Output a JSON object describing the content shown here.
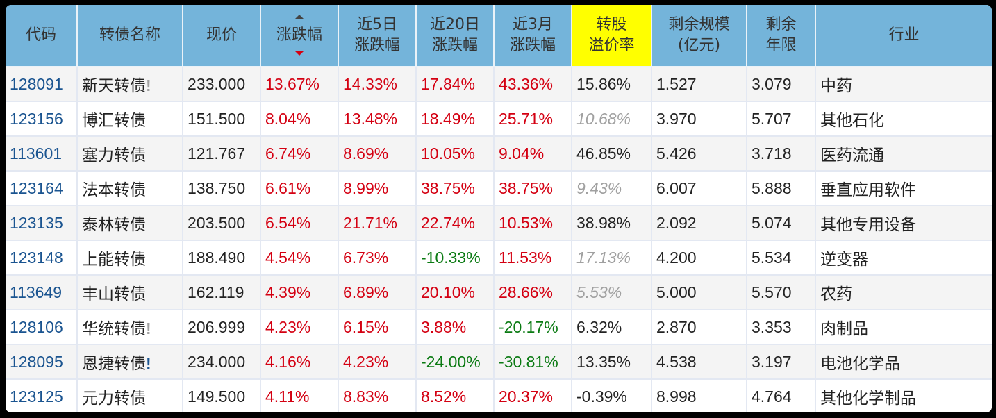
{
  "headers": [
    {
      "line1": "代码",
      "line2": ""
    },
    {
      "line1": "转债名称",
      "line2": ""
    },
    {
      "line1": "现价",
      "line2": ""
    },
    {
      "line1": "涨跌幅",
      "line2": "",
      "sort": "descending"
    },
    {
      "line1": "近5日",
      "line2": "涨跌幅"
    },
    {
      "line1": "近20日",
      "line2": "涨跌幅"
    },
    {
      "line1": "近3月",
      "line2": "涨跌幅"
    },
    {
      "line1": "转股",
      "line2": "溢价率",
      "highlight": true
    },
    {
      "line1": "剩余规模",
      "line2": "(亿元)"
    },
    {
      "line1": "剩余",
      "line2": "年限"
    },
    {
      "line1": "行业",
      "line2": ""
    }
  ],
  "colors": {
    "header_bg": "#74b4da",
    "highlight_bg": "#ffff00",
    "up": "#d40012",
    "down": "#0a7a12",
    "code": "#1a5490",
    "dim": "#a0a0a0"
  },
  "rows": [
    {
      "code": "128091",
      "name": "新天转债",
      "flag": "!",
      "flag_color": "gray",
      "price": "233.000",
      "chg": "13.67%",
      "chg5": "14.33%",
      "chg20": "17.84%",
      "chg3m": "43.36%",
      "premium": "15.86%",
      "premium_dim": false,
      "size": "1.527",
      "years": "3.079",
      "industry": "中药"
    },
    {
      "code": "123156",
      "name": "博汇转债",
      "flag": "",
      "flag_color": "",
      "price": "151.500",
      "chg": "8.04%",
      "chg5": "13.48%",
      "chg20": "18.49%",
      "chg3m": "25.71%",
      "premium": "10.68%",
      "premium_dim": true,
      "size": "3.970",
      "years": "5.707",
      "industry": "其他石化"
    },
    {
      "code": "113601",
      "name": "塞力转债",
      "flag": "",
      "flag_color": "",
      "price": "121.767",
      "chg": "6.74%",
      "chg5": "8.69%",
      "chg20": "10.05%",
      "chg3m": "9.04%",
      "premium": "46.85%",
      "premium_dim": false,
      "size": "5.426",
      "years": "3.718",
      "industry": "医药流通"
    },
    {
      "code": "123164",
      "name": "法本转债",
      "flag": "",
      "flag_color": "",
      "price": "138.750",
      "chg": "6.61%",
      "chg5": "8.99%",
      "chg20": "38.75%",
      "chg3m": "38.75%",
      "premium": "9.43%",
      "premium_dim": true,
      "size": "6.007",
      "years": "5.888",
      "industry": "垂直应用软件"
    },
    {
      "code": "123135",
      "name": "泰林转债",
      "flag": "",
      "flag_color": "",
      "price": "203.500",
      "chg": "6.54%",
      "chg5": "21.71%",
      "chg20": "22.74%",
      "chg3m": "10.53%",
      "premium": "38.98%",
      "premium_dim": false,
      "size": "2.092",
      "years": "5.074",
      "industry": "其他专用设备"
    },
    {
      "code": "123148",
      "name": "上能转债",
      "flag": "",
      "flag_color": "",
      "price": "188.490",
      "chg": "4.54%",
      "chg5": "6.73%",
      "chg20": "-10.33%",
      "chg3m": "11.53%",
      "premium": "17.13%",
      "premium_dim": true,
      "size": "4.200",
      "years": "5.534",
      "industry": "逆变器"
    },
    {
      "code": "113649",
      "name": "丰山转债",
      "flag": "",
      "flag_color": "",
      "price": "162.119",
      "chg": "4.39%",
      "chg5": "6.89%",
      "chg20": "20.10%",
      "chg3m": "28.66%",
      "premium": "5.53%",
      "premium_dim": true,
      "size": "5.000",
      "years": "5.570",
      "industry": "农药"
    },
    {
      "code": "128106",
      "name": "华统转债",
      "flag": "!",
      "flag_color": "gray",
      "price": "206.999",
      "chg": "4.23%",
      "chg5": "6.15%",
      "chg20": "3.88%",
      "chg3m": "-20.17%",
      "premium": "6.32%",
      "premium_dim": false,
      "size": "2.870",
      "years": "3.353",
      "industry": "肉制品"
    },
    {
      "code": "128095",
      "name": "恩捷转债",
      "flag": "!",
      "flag_color": "blue",
      "price": "234.000",
      "chg": "4.16%",
      "chg5": "4.23%",
      "chg20": "-24.00%",
      "chg3m": "-30.81%",
      "premium": "13.35%",
      "premium_dim": false,
      "size": "4.538",
      "years": "3.197",
      "industry": "电池化学品"
    },
    {
      "code": "123125",
      "name": "元力转债",
      "flag": "",
      "flag_color": "",
      "price": "149.500",
      "chg": "4.11%",
      "chg5": "8.83%",
      "chg20": "8.52%",
      "chg3m": "20.37%",
      "premium": "-0.39%",
      "premium_dim": false,
      "size": "8.998",
      "years": "4.764",
      "industry": "其他化学制品"
    }
  ]
}
